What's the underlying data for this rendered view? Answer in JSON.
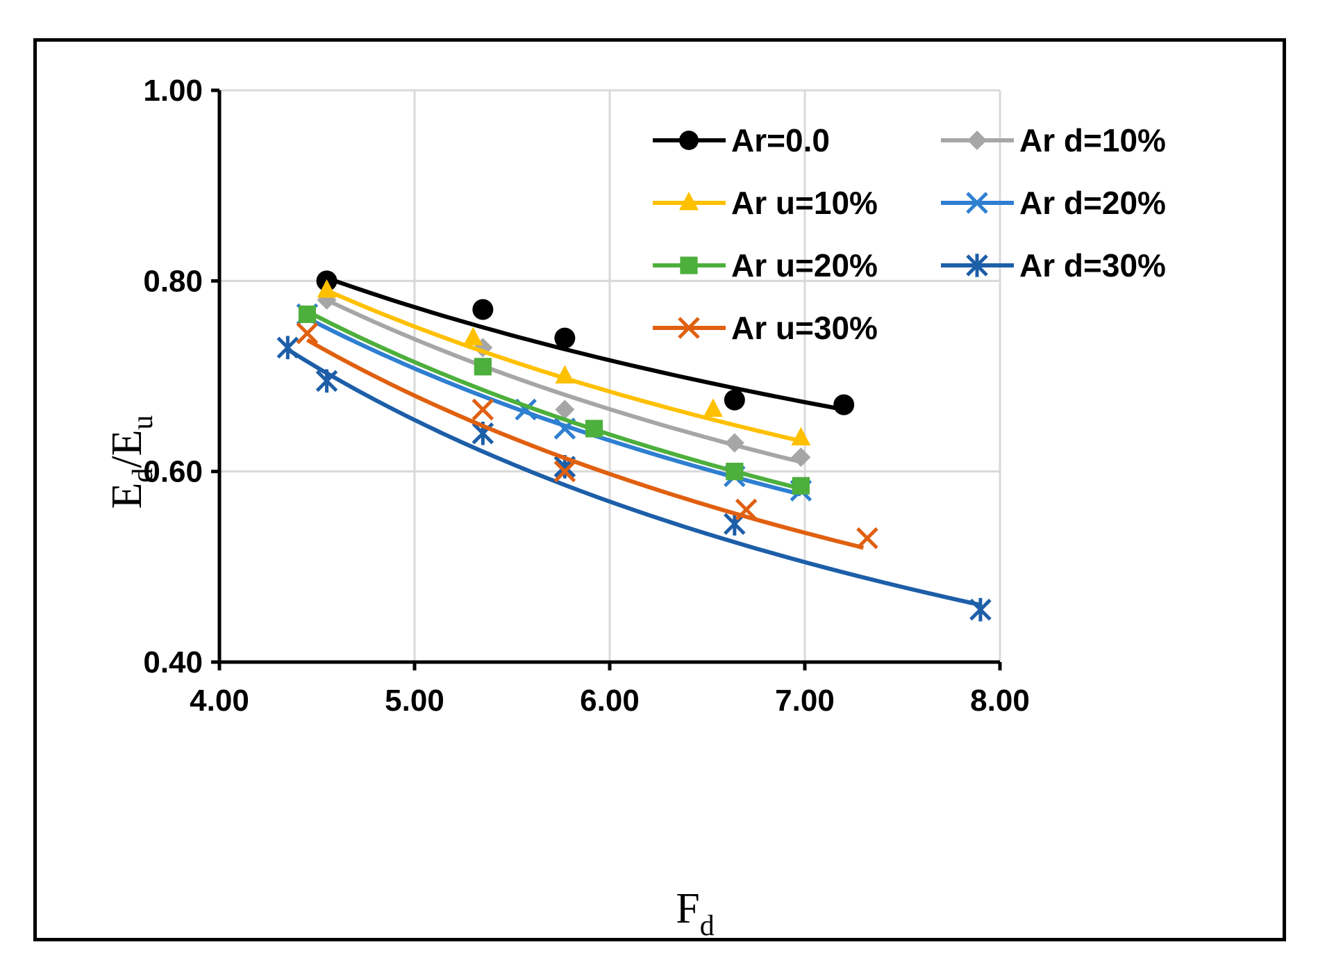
{
  "chart_data": {
    "type": "scatter",
    "title": "",
    "xlabel": {
      "main": "F",
      "sub": "d"
    },
    "ylabel": {
      "main": "E",
      "sub1": "d",
      "slash": "/E",
      "sub2": "u"
    },
    "xlim": [
      4.0,
      8.0
    ],
    "ylim": [
      0.4,
      1.0
    ],
    "xticks": [
      4.0,
      5.0,
      6.0,
      7.0,
      8.0
    ],
    "xtick_labels": [
      "4.00",
      "5.00",
      "6.00",
      "7.00",
      "8.00"
    ],
    "yticks": [
      0.4,
      0.6,
      0.8,
      1.0
    ],
    "ytick_labels": [
      "0.40",
      "0.60",
      "0.80",
      "1.00"
    ],
    "grid": true,
    "legend_position": "top-right",
    "series": [
      {
        "name": "Ar=0.0",
        "color": "#000000",
        "marker": "circle",
        "x": [
          4.55,
          5.35,
          5.77,
          6.64,
          7.2
        ],
        "y": [
          0.8,
          0.77,
          0.74,
          0.675,
          0.67
        ],
        "fit_x": [
          4.55,
          7.2
        ],
        "fit_y": [
          0.803,
          0.665
        ]
      },
      {
        "name": "Ar d=10%",
        "color": "#a6a6a6",
        "marker": "diamond",
        "x": [
          4.55,
          5.35,
          5.77,
          6.64,
          6.98
        ],
        "y": [
          0.78,
          0.73,
          0.665,
          0.63,
          0.615
        ],
        "fit_x": [
          4.55,
          6.98
        ],
        "fit_y": [
          0.78,
          0.61
        ]
      },
      {
        "name": "Ar u=10%",
        "color": "#ffc000",
        "marker": "triangle",
        "x": [
          4.55,
          5.3,
          5.77,
          6.53,
          6.98
        ],
        "y": [
          0.79,
          0.74,
          0.7,
          0.665,
          0.635
        ],
        "fit_x": [
          4.55,
          6.98
        ],
        "fit_y": [
          0.79,
          0.632
        ]
      },
      {
        "name": "Ar d=20%",
        "color": "#2f7fd1",
        "marker": "x",
        "x": [
          4.45,
          5.57,
          5.77,
          6.64,
          6.98
        ],
        "y": [
          0.765,
          0.665,
          0.645,
          0.595,
          0.58
        ],
        "fit_x": [
          4.45,
          6.98
        ],
        "fit_y": [
          0.761,
          0.576
        ]
      },
      {
        "name": "Ar u=20%",
        "color": "#4daf3c",
        "marker": "square",
        "x": [
          4.45,
          5.35,
          5.92,
          6.64,
          6.98
        ],
        "y": [
          0.765,
          0.71,
          0.645,
          0.6,
          0.585
        ],
        "fit_x": [
          4.45,
          6.98
        ],
        "fit_y": [
          0.768,
          0.582
        ]
      },
      {
        "name": "Ar d=30%",
        "color": "#1d5ea8",
        "marker": "asterisk",
        "x": [
          4.35,
          4.55,
          5.35,
          5.77,
          6.64,
          7.9
        ],
        "y": [
          0.73,
          0.695,
          0.64,
          0.605,
          0.545,
          0.455
        ],
        "fit_x": [
          4.35,
          7.9
        ],
        "fit_y": [
          0.728,
          0.46
        ]
      },
      {
        "name": "Ar u=30%",
        "color": "#e06010",
        "marker": "x",
        "x": [
          4.45,
          5.35,
          5.77,
          6.7,
          7.32
        ],
        "y": [
          0.745,
          0.665,
          0.6,
          0.56,
          0.53
        ],
        "fit_x": [
          4.45,
          7.3
        ],
        "fit_y": [
          0.738,
          0.52
        ]
      }
    ]
  }
}
